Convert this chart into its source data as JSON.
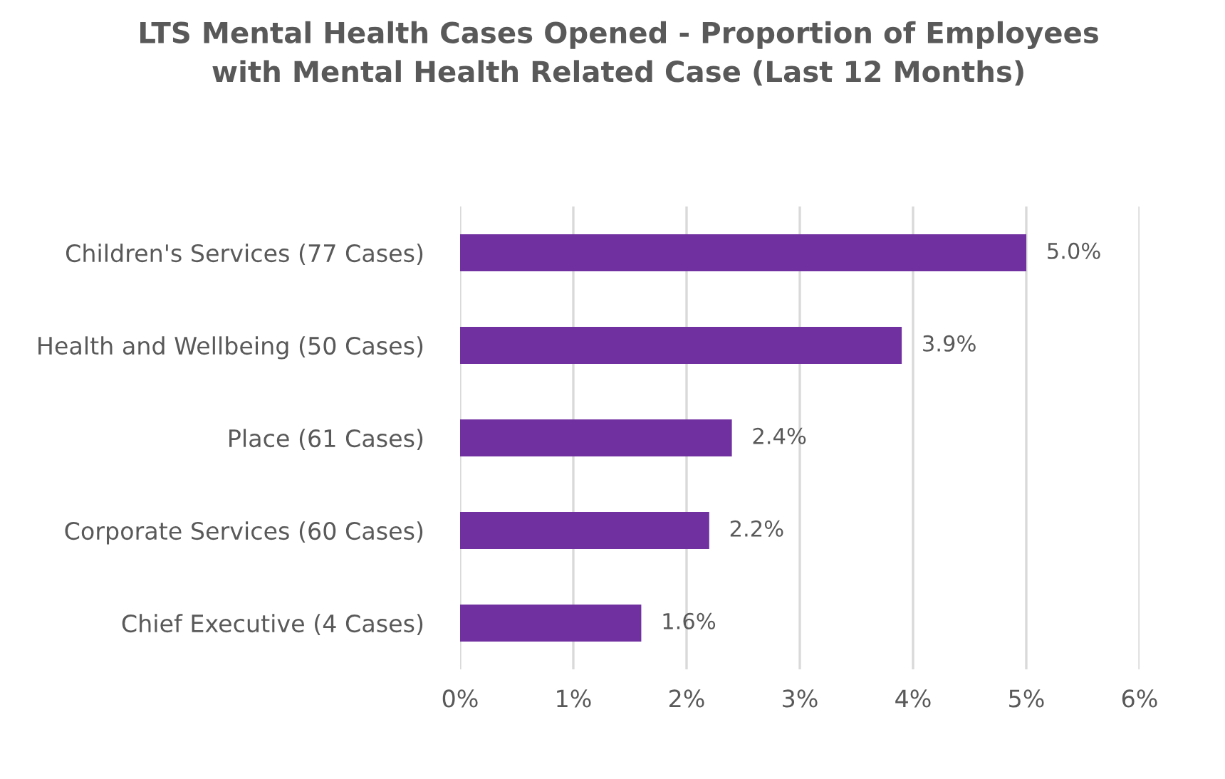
{
  "chart_data": {
    "type": "bar",
    "orientation": "horizontal",
    "title": "LTS Mental Health Cases Opened - Proportion of Employees\nwith Mental Health Related Case (Last 12 Months)",
    "categories": [
      "Children's Services (77 Cases)",
      "Health and Wellbeing (50 Cases)",
      "Place (61 Cases)",
      "Corporate Services (60 Cases)",
      "Chief Executive (4 Cases)"
    ],
    "values": [
      5.0,
      3.9,
      2.4,
      2.2,
      1.6
    ],
    "value_labels": [
      "5.0%",
      "3.9%",
      "2.4%",
      "2.2%",
      "1.6%"
    ],
    "color": "#7030a0",
    "xlim": [
      0,
      6
    ],
    "xticks": [
      {
        "value": 0,
        "label": "0%"
      },
      {
        "value": 1,
        "label": "1%"
      },
      {
        "value": 2,
        "label": "2%"
      },
      {
        "value": 3,
        "label": "3%"
      },
      {
        "value": 4,
        "label": "4%"
      },
      {
        "value": 5,
        "label": "5%"
      },
      {
        "value": 6,
        "label": "6%"
      }
    ],
    "grid": "x",
    "legend": false
  }
}
